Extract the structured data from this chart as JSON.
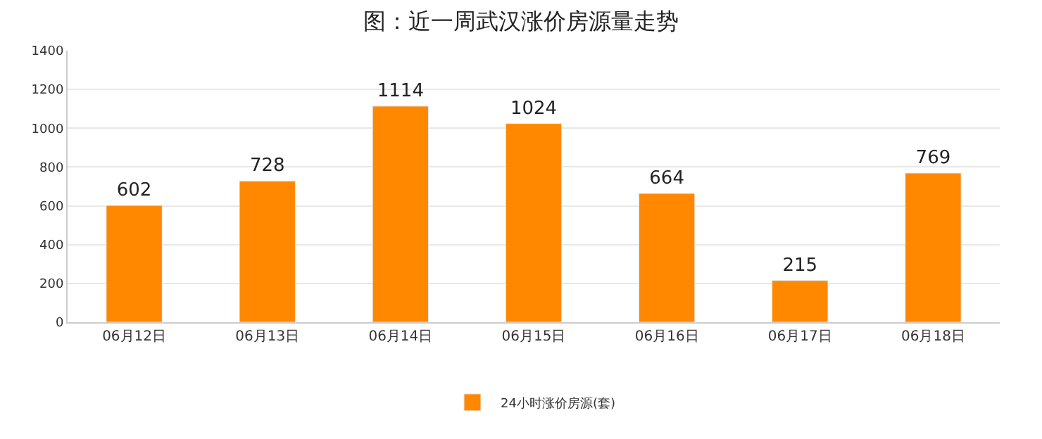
{
  "chart_data": {
    "type": "bar",
    "title": "图：近一周武汉涨价房源量走势",
    "categories": [
      "06月12日",
      "06月13日",
      "06月14日",
      "06月15日",
      "06月16日",
      "06月17日",
      "06月18日"
    ],
    "series": [
      {
        "name": "24小时涨价房源(套)",
        "color": "#ff8800",
        "values": [
          602,
          728,
          1114,
          1024,
          664,
          215,
          769
        ]
      }
    ],
    "ylim": [
      0,
      1400
    ],
    "yticks": [
      0,
      200,
      400,
      600,
      800,
      1000,
      1200,
      1400
    ],
    "grid": "y",
    "legend": "bottom",
    "data_labels": true
  }
}
